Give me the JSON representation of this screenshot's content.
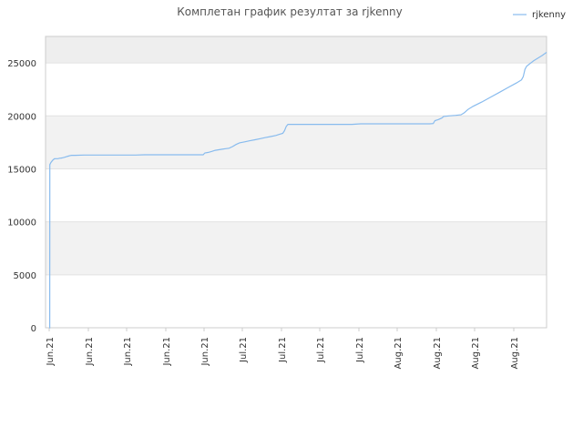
{
  "chart_data": {
    "type": "line",
    "title": "Комплетан график резултат за rjkenny",
    "xlabel": "",
    "ylabel": "",
    "ylim": [
      0,
      27500
    ],
    "y_ticks": [
      0,
      5000,
      10000,
      15000,
      20000,
      25000
    ],
    "x_ticks": [
      "Jun.21",
      "Jun.21",
      "Jun.21",
      "Jun.21",
      "Jun.21",
      "Jul.21",
      "Jul.21",
      "Jul.21",
      "Jul.21",
      "Aug.21",
      "Aug.21",
      "Aug.21",
      "Aug.21"
    ],
    "grid": true,
    "legend": "top-right",
    "colors": {
      "series": "#88bbee",
      "band": "#f2f2f2",
      "axis": "#cccccc"
    },
    "series": [
      {
        "name": "rjkenny",
        "points": [
          [
            0,
            0
          ],
          [
            0.6,
            0
          ],
          [
            0.7,
            15400
          ],
          [
            2,
            15600
          ],
          [
            4,
            15800
          ],
          [
            6,
            15950
          ],
          [
            8,
            15960
          ],
          [
            10,
            15960
          ],
          [
            12,
            16000
          ],
          [
            14,
            16020
          ],
          [
            16,
            16050
          ],
          [
            18,
            16100
          ],
          [
            20,
            16150
          ],
          [
            22,
            16200
          ],
          [
            24,
            16250
          ],
          [
            26,
            16280
          ],
          [
            30,
            16280
          ],
          [
            40,
            16300
          ],
          [
            60,
            16300
          ],
          [
            80,
            16300
          ],
          [
            95,
            16300
          ],
          [
            100,
            16300
          ],
          [
            110,
            16330
          ],
          [
            130,
            16330
          ],
          [
            150,
            16330
          ],
          [
            170,
            16330
          ],
          [
            178,
            16330
          ],
          [
            180,
            16500
          ],
          [
            184,
            16550
          ],
          [
            188,
            16650
          ],
          [
            192,
            16750
          ],
          [
            196,
            16800
          ],
          [
            200,
            16850
          ],
          [
            204,
            16900
          ],
          [
            208,
            16950
          ],
          [
            212,
            17100
          ],
          [
            216,
            17300
          ],
          [
            220,
            17450
          ],
          [
            226,
            17550
          ],
          [
            232,
            17650
          ],
          [
            238,
            17750
          ],
          [
            244,
            17850
          ],
          [
            250,
            17950
          ],
          [
            256,
            18050
          ],
          [
            262,
            18150
          ],
          [
            266,
            18250
          ],
          [
            270,
            18350
          ],
          [
            272,
            18600
          ],
          [
            274,
            19000
          ],
          [
            276,
            19200
          ],
          [
            300,
            19200
          ],
          [
            340,
            19200
          ],
          [
            350,
            19200
          ],
          [
            360,
            19250
          ],
          [
            400,
            19250
          ],
          [
            440,
            19250
          ],
          [
            444,
            19280
          ],
          [
            446,
            19550
          ],
          [
            450,
            19650
          ],
          [
            454,
            19800
          ],
          [
            456,
            19950
          ],
          [
            462,
            20000
          ],
          [
            470,
            20050
          ],
          [
            476,
            20100
          ],
          [
            480,
            20300
          ],
          [
            484,
            20600
          ],
          [
            490,
            20900
          ],
          [
            500,
            21300
          ],
          [
            510,
            21750
          ],
          [
            520,
            22200
          ],
          [
            530,
            22650
          ],
          [
            540,
            23100
          ],
          [
            546,
            23400
          ],
          [
            548,
            23700
          ],
          [
            550,
            24400
          ],
          [
            552,
            24700
          ],
          [
            560,
            25200
          ],
          [
            570,
            25700
          ],
          [
            575,
            26000
          ]
        ]
      }
    ]
  }
}
